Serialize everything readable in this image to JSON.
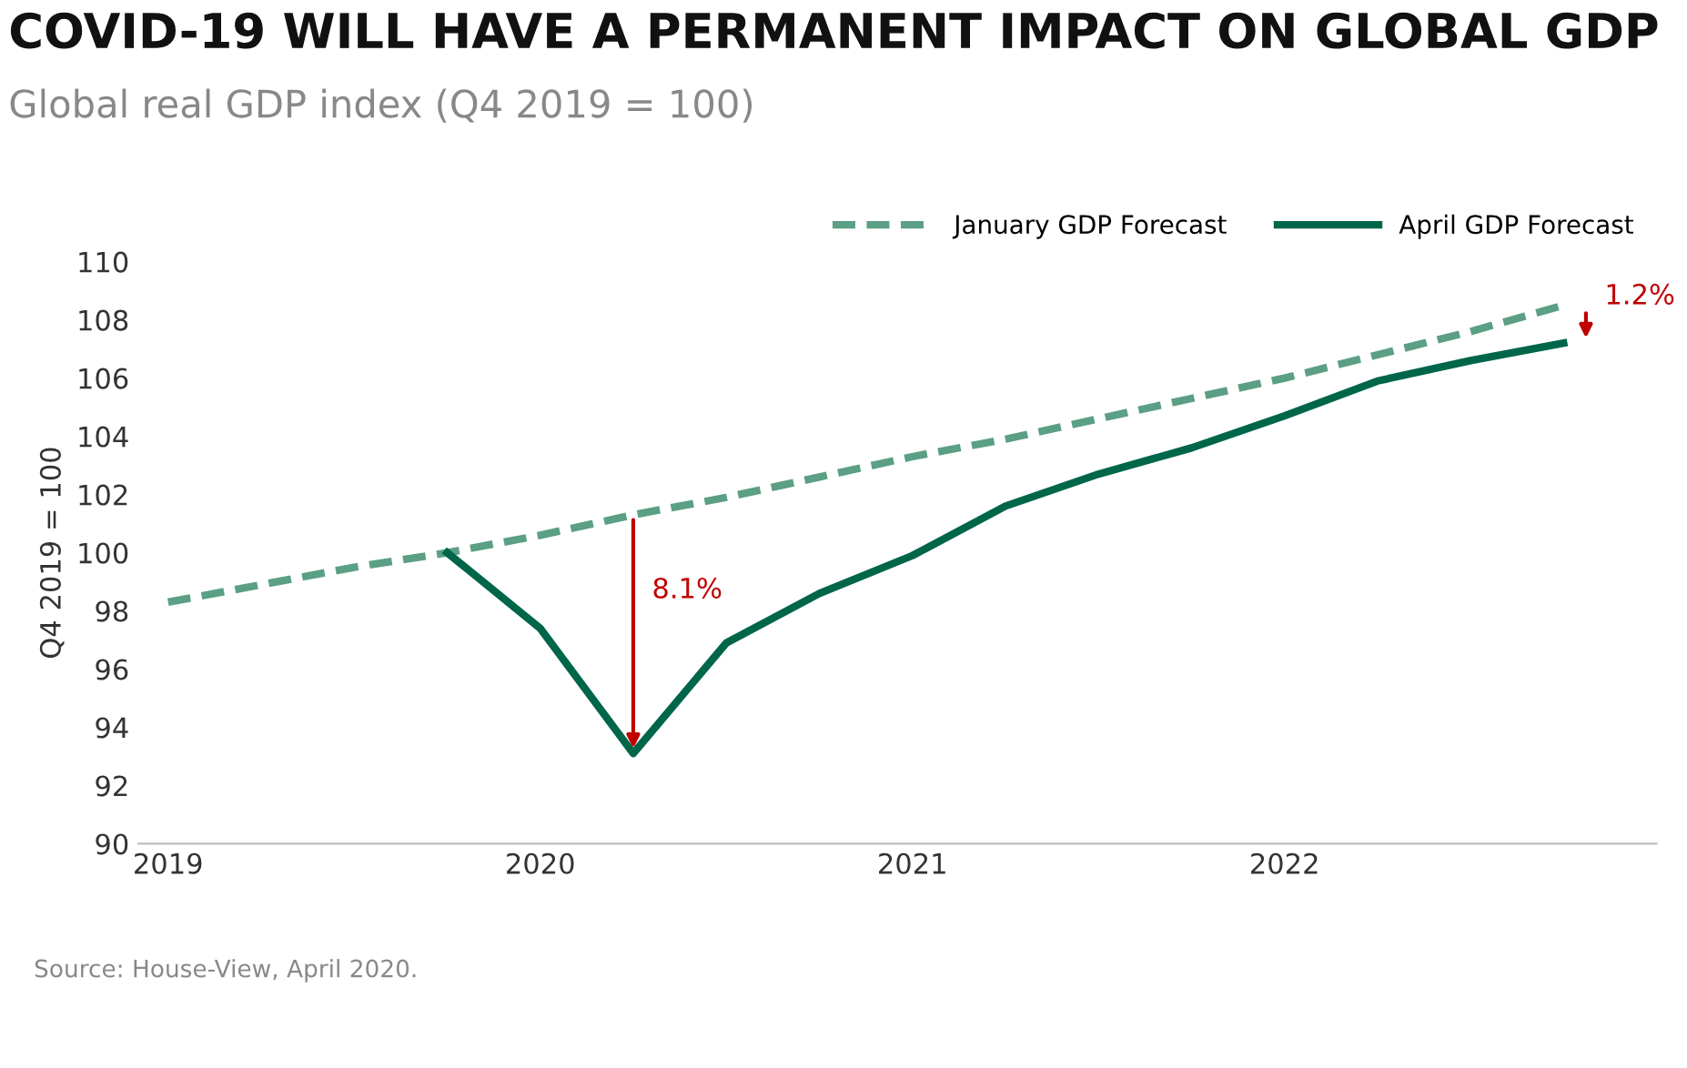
{
  "chart_data": {
    "type": "line",
    "title": "COVID-19 WILL HAVE A PERMANENT IMPACT ON GLOBAL GDP",
    "subtitle": "Global real GDP index (Q4 2019 = 100)",
    "ylabel": "Q4 2019 = 100",
    "xlim": [
      2018.92,
      2023.0
    ],
    "xticks": [
      2019,
      2020,
      2021,
      2022
    ],
    "ylim": [
      90,
      110
    ],
    "yticks": [
      90,
      92,
      94,
      96,
      98,
      100,
      102,
      104,
      106,
      108,
      110
    ],
    "grid": false,
    "legend": "top right",
    "series": [
      {
        "name": "January GDP Forecast",
        "color": "#5b9f84",
        "line_style": "dashed",
        "x": [
          2019,
          2019.25,
          2019.5,
          2019.75,
          2020,
          2020.25,
          2020.5,
          2020.75,
          2021,
          2021.25,
          2021.5,
          2021.75,
          2022,
          2022.25,
          2022.5,
          2022.75
        ],
        "values": [
          98.3,
          98.9,
          99.5,
          100.0,
          100.6,
          101.3,
          101.9,
          102.6,
          103.3,
          103.9,
          104.6,
          105.3,
          106.0,
          106.8,
          107.6,
          108.5
        ]
      },
      {
        "name": "April GDP Forecast",
        "color": "#00664a",
        "line_style": "solid",
        "x": [
          2019.75,
          2020,
          2020.25,
          2020.5,
          2020.75,
          2021,
          2021.25,
          2021.5,
          2021.75,
          2022,
          2022.25,
          2022.5,
          2022.75
        ],
        "values": [
          100.0,
          97.4,
          93.1,
          96.9,
          98.6,
          99.9,
          101.6,
          102.7,
          103.6,
          104.7,
          105.9,
          106.6,
          107.2
        ]
      }
    ],
    "annotations": [
      {
        "text": "8.1%",
        "x": 2020.25,
        "y": 101.3
      },
      {
        "text": "1.2%",
        "x": 2022.75,
        "y": 108.4
      },
      "Source: House-View, April 2020."
    ]
  }
}
